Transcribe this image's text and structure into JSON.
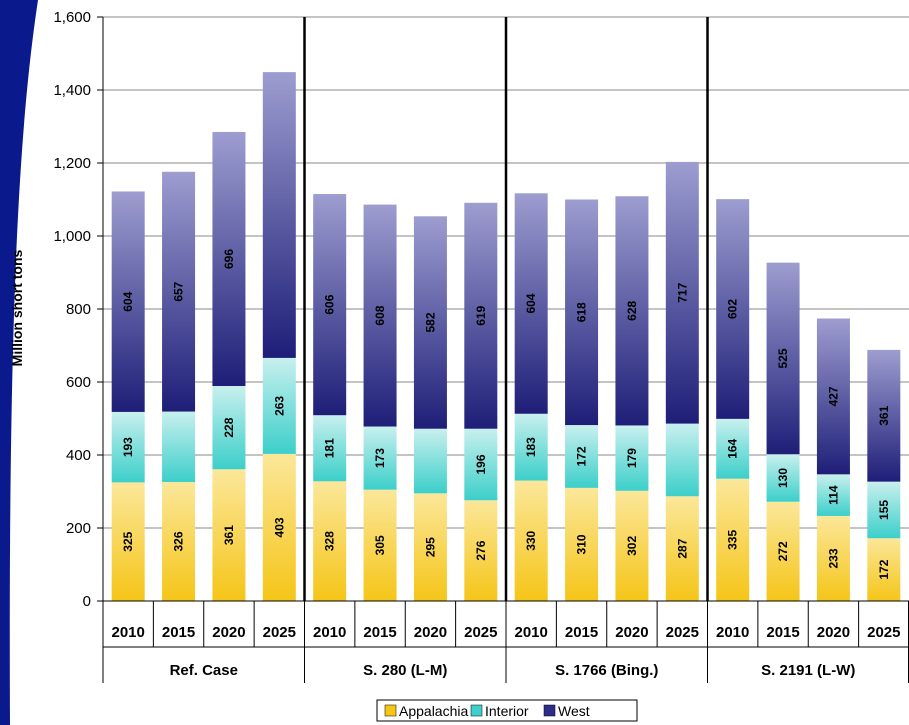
{
  "chart_data": {
    "type": "bar",
    "stacked": true,
    "ylabel": "Million short tons",
    "ylim": [
      0,
      1600
    ],
    "yticks": [
      "0",
      "200",
      "400",
      "600",
      "800",
      "1,000",
      "1,200",
      "1,400",
      "1,600"
    ],
    "groups": [
      {
        "name": "Ref. Case",
        "years": [
          "2010",
          "2015",
          "2020",
          "2025"
        ],
        "appalachia": [
          325,
          326,
          361,
          403
        ],
        "interior": [
          193,
          193,
          228,
          263
        ],
        "west": [
          604,
          657,
          696,
          783
        ],
        "labels": {
          "appalachia": [
            "325",
            "326",
            "361",
            "403"
          ],
          "interior": [
            "193",
            "",
            "228",
            "263"
          ],
          "west": [
            "604",
            "657",
            "696",
            ""
          ]
        }
      },
      {
        "name": "S. 280 (L-M)",
        "years": [
          "2010",
          "2015",
          "2020",
          "2025"
        ],
        "appalachia": [
          328,
          305,
          295,
          276
        ],
        "interior": [
          181,
          173,
          177,
          196
        ],
        "west": [
          606,
          608,
          582,
          619
        ],
        "labels": {
          "appalachia": [
            "328",
            "305",
            "295",
            "276"
          ],
          "interior": [
            "181",
            "173",
            "",
            "196"
          ],
          "west": [
            "606",
            "608",
            "582",
            "619"
          ]
        }
      },
      {
        "name": "S. 1766 (Bing.)",
        "years": [
          "2010",
          "2015",
          "2020",
          "2025"
        ],
        "appalachia": [
          330,
          310,
          302,
          287
        ],
        "interior": [
          183,
          172,
          179,
          199
        ],
        "west": [
          604,
          618,
          628,
          717
        ],
        "labels": {
          "appalachia": [
            "330",
            "310",
            "302",
            "287"
          ],
          "interior": [
            "183",
            "172",
            "179",
            ""
          ],
          "west": [
            "604",
            "618",
            "628",
            "717"
          ]
        }
      },
      {
        "name": "S. 2191 (L-W)",
        "years": [
          "2010",
          "2015",
          "2020",
          "2025"
        ],
        "appalachia": [
          335,
          272,
          233,
          172
        ],
        "interior": [
          164,
          130,
          114,
          155
        ],
        "west": [
          602,
          525,
          427,
          361
        ],
        "labels": {
          "appalachia": [
            "335",
            "272",
            "233",
            "172"
          ],
          "interior": [
            "164",
            "130",
            "114",
            "155"
          ],
          "west": [
            "602",
            "525",
            "427",
            "361"
          ]
        }
      }
    ],
    "legend": {
      "placement": "bottom",
      "items": [
        {
          "name": "Appalachia",
          "color": "#f5c518"
        },
        {
          "name": "Interior",
          "color": "#40d0cc"
        },
        {
          "name": "West",
          "color": "#2e2e8a"
        }
      ]
    },
    "colors": {
      "appalachia_top": "#fbe79a",
      "appalachia_bottom": "#f5c518",
      "interior_top": "#c8f0ee",
      "interior_bottom": "#3ccfca",
      "west_top": "#9d9dd0",
      "west_bottom": "#1e1e78",
      "left_band": "#0a1a8c"
    }
  }
}
